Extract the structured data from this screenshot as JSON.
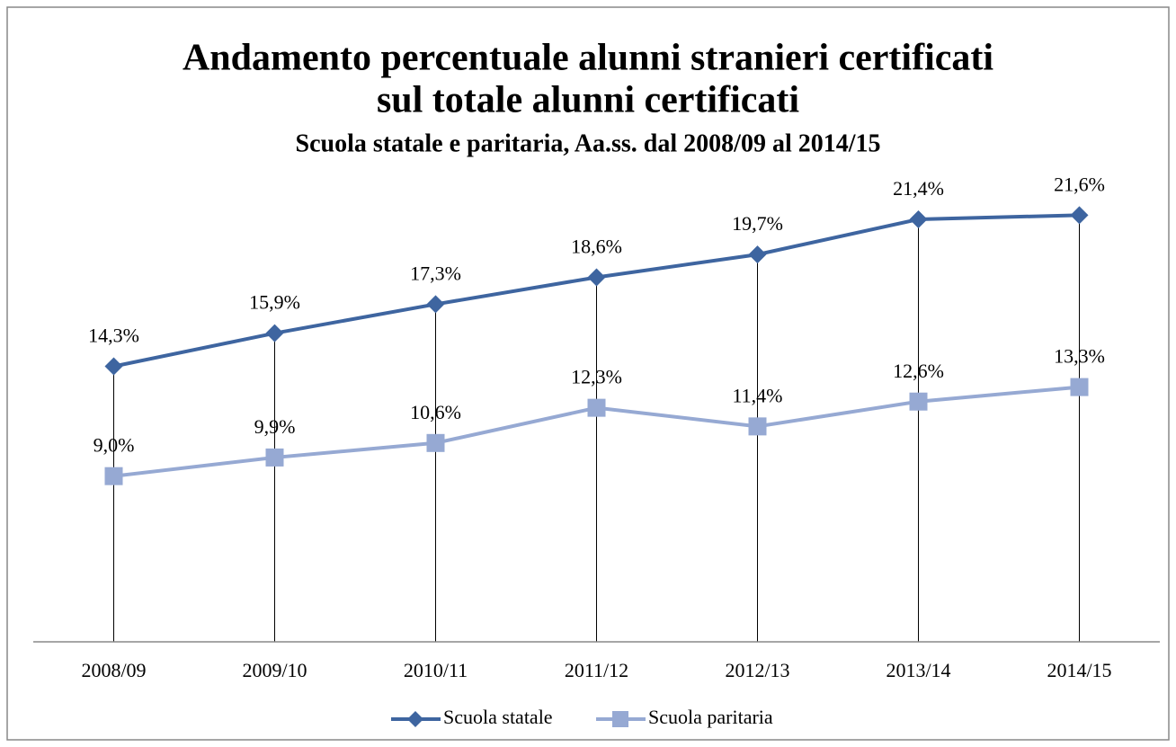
{
  "chart_data": {
    "type": "line",
    "title": [
      "Andamento percentuale alunni stranieri certificati",
      "sul totale alunni certificati"
    ],
    "subtitle": "Scuola statale e paritaria, Aa.ss. dal 2008/09 al 2014/15",
    "categories": [
      "2008/09",
      "2009/10",
      "2010/11",
      "2011/12",
      "2012/13",
      "2013/14",
      "2014/15"
    ],
    "series": [
      {
        "name": "Scuola statale",
        "color": "#3e65a0",
        "marker": "diamond",
        "values": [
          14.3,
          15.9,
          17.3,
          18.6,
          19.7,
          21.4,
          21.6
        ],
        "value_labels": [
          "14,3%",
          "15,9%",
          "17,3%",
          "18,6%",
          "19,7%",
          "21,4%",
          "21,6%"
        ]
      },
      {
        "name": "Scuola paritaria",
        "color": "#96a9d3",
        "marker": "square",
        "values": [
          9.0,
          9.9,
          10.6,
          12.3,
          11.4,
          12.6,
          13.3
        ],
        "value_labels": [
          "9,0%",
          "9,9%",
          "10,6%",
          "12,3%",
          "11,4%",
          "12,6%",
          "13,3%"
        ]
      }
    ],
    "ylim": [
      1,
      25
    ],
    "drop_lines": true,
    "legend": "bottom"
  }
}
